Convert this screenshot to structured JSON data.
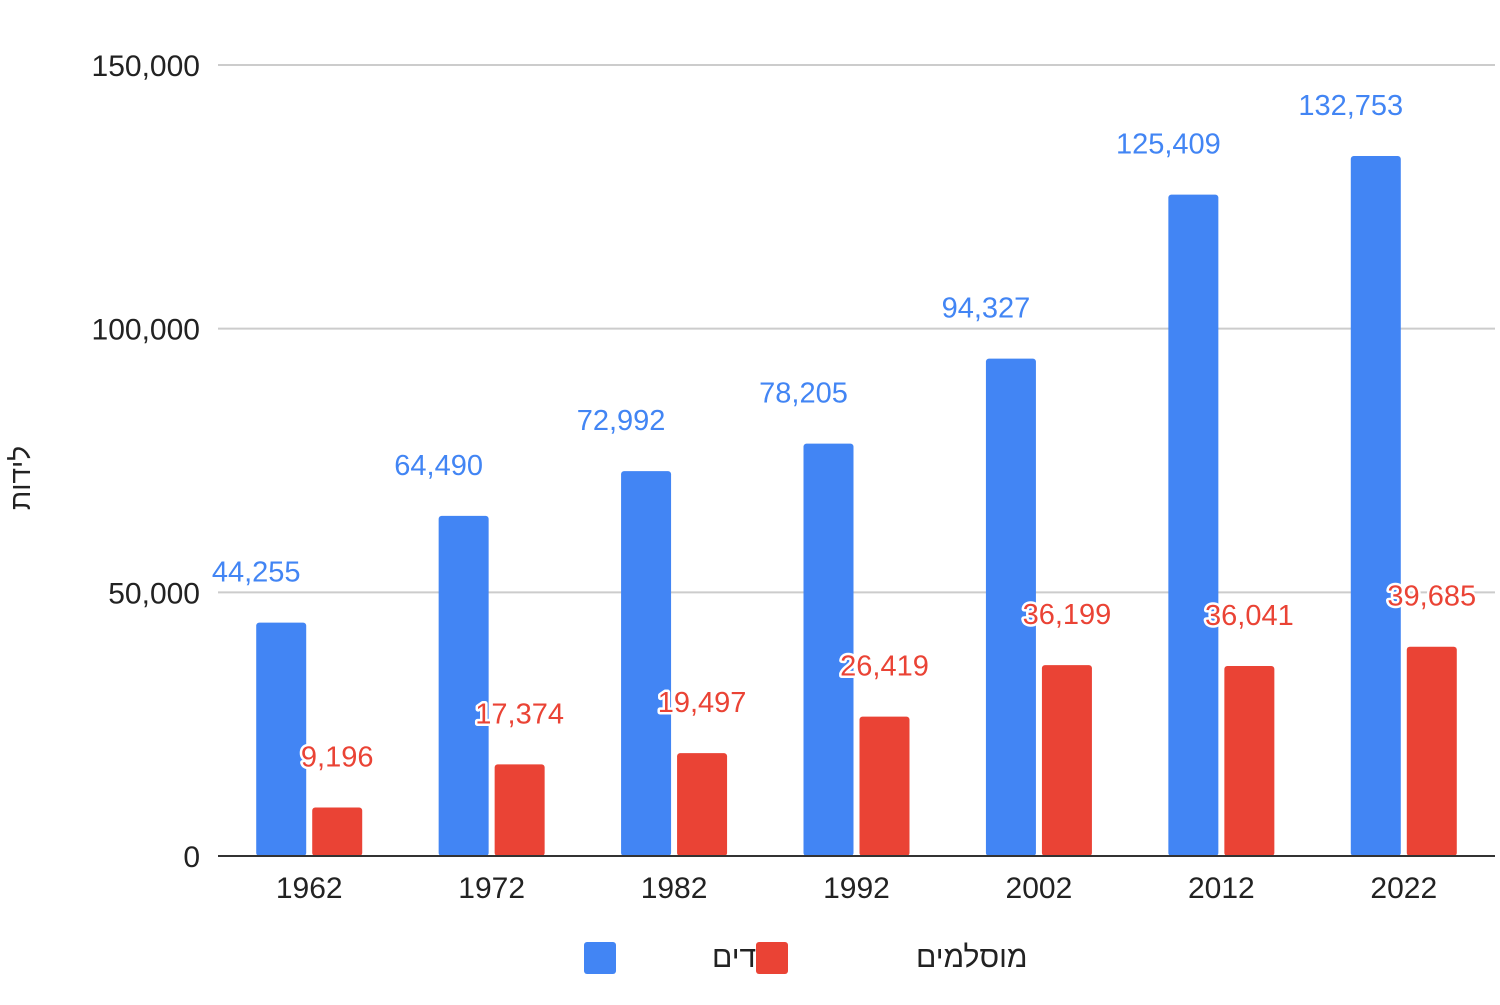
{
  "chart_data": {
    "type": "bar",
    "categories": [
      "1962",
      "1972",
      "1982",
      "1992",
      "2002",
      "2012",
      "2022"
    ],
    "series": [
      {
        "name": "יהודים",
        "color": "#4285F4",
        "values": [
          44255,
          64490,
          72992,
          78205,
          94327,
          125409,
          132753
        ],
        "labels": [
          "44,255",
          "64,490",
          "72,992",
          "78,205",
          "94,327",
          "125,409",
          "132,753"
        ]
      },
      {
        "name": "מוסלמים",
        "color": "#EA4335",
        "values": [
          9196,
          17374,
          19497,
          26419,
          36199,
          36041,
          39685
        ],
        "labels": [
          "9,196",
          "17,374",
          "19,497",
          "26,419",
          "36,199",
          "36,041",
          "39,685"
        ]
      }
    ],
    "title": "",
    "xlabel": "",
    "ylabel": "לידות",
    "ylim": [
      0,
      150000
    ],
    "yticks": [
      0,
      50000,
      100000,
      150000
    ],
    "ytick_labels": [
      "0",
      "50,000",
      "100,000",
      "150,000"
    ],
    "grid": true,
    "legend_position": "bottom"
  }
}
